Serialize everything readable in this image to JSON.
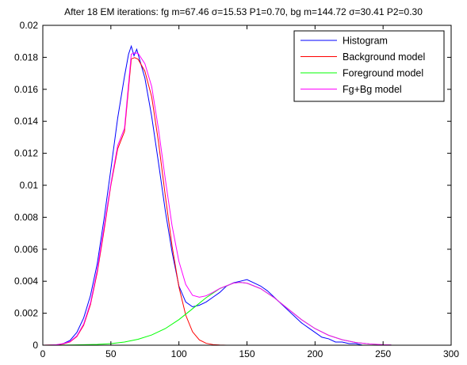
{
  "chart_data": {
    "type": "line",
    "title": "After 18 EM iterations: fg m=67.46 σ=15.53 P1=0.70, bg m=144.72 σ=30.41 P2=0.30",
    "xlabel": "",
    "ylabel": "",
    "xlim": [
      0,
      300
    ],
    "ylim": [
      0,
      0.02
    ],
    "xticks": [
      0,
      50,
      100,
      150,
      200,
      250,
      300
    ],
    "xtick_labels": [
      "0",
      "50",
      "100",
      "150",
      "200",
      "250",
      "300"
    ],
    "yticks": [
      0,
      0.002,
      0.004,
      0.006,
      0.008,
      0.01,
      0.012,
      0.014,
      0.016,
      0.018,
      0.02
    ],
    "ytick_labels": [
      "0",
      "0.002",
      "0.004",
      "0.006",
      "0.008",
      "0.01",
      "0.012",
      "0.014",
      "0.016",
      "0.018",
      "0.02"
    ],
    "grid": false,
    "legend_position": "top-right",
    "series": [
      {
        "name": "Histogram",
        "color": "#0000ff",
        "x": [
          0,
          5,
          10,
          15,
          20,
          25,
          30,
          35,
          40,
          45,
          50,
          55,
          60,
          63,
          65,
          67,
          69,
          72,
          75,
          80,
          85,
          90,
          95,
          100,
          105,
          110,
          115,
          120,
          125,
          130,
          135,
          140,
          145,
          150,
          155,
          160,
          165,
          170,
          175,
          180,
          185,
          190,
          195,
          200,
          205,
          210,
          215,
          220,
          225,
          230,
          235,
          240,
          245,
          250,
          255
        ],
        "y": [
          0,
          0,
          0,
          0.0001,
          0.0003,
          0.0008,
          0.0017,
          0.0031,
          0.0051,
          0.0079,
          0.011,
          0.0142,
          0.0168,
          0.0182,
          0.0187,
          0.0181,
          0.0185,
          0.0176,
          0.0167,
          0.0143,
          0.0114,
          0.0084,
          0.0058,
          0.0037,
          0.0027,
          0.0024,
          0.0025,
          0.0027,
          0.003,
          0.0033,
          0.0037,
          0.0039,
          0.004,
          0.0041,
          0.0039,
          0.0037,
          0.0034,
          0.003,
          0.0026,
          0.0022,
          0.0018,
          0.0014,
          0.0011,
          0.0008,
          0.0005,
          0.0004,
          0.0002,
          0.0002,
          0.0001,
          0.0001,
          0,
          0,
          0,
          0,
          0
        ]
      },
      {
        "name": "Background model",
        "color": "#ff0000",
        "x": [
          0,
          5,
          10,
          15,
          20,
          25,
          30,
          35,
          40,
          45,
          50,
          55,
          60,
          65,
          67.46,
          70,
          75,
          80,
          85,
          90,
          95,
          100,
          105,
          110,
          115,
          120,
          125,
          130,
          135,
          140,
          150,
          200,
          256
        ],
        "y": [
          0,
          1e-05,
          2e-05,
          8e-05,
          0.00021,
          0.00054,
          0.00125,
          0.00254,
          0.00455,
          0.00718,
          0.01,
          0.01228,
          0.01336,
          0.0179,
          0.01798,
          0.01788,
          0.01713,
          0.01553,
          0.0127,
          0.00934,
          0.00618,
          0.00364,
          0.00188,
          0.00084,
          0.00033,
          0.00012,
          4e-05,
          1e-05,
          0,
          0,
          0,
          0,
          0
        ]
      },
      {
        "name": "Foreground model",
        "color": "#00ff00",
        "x": [
          0,
          20,
          40,
          50,
          60,
          70,
          80,
          90,
          100,
          110,
          120,
          130,
          140,
          144.72,
          150,
          160,
          170,
          180,
          190,
          200,
          210,
          220,
          230,
          240,
          250,
          256
        ],
        "y": [
          0,
          1e-05,
          5e-05,
          0.0001,
          0.0002,
          0.00037,
          0.00064,
          0.00104,
          0.0016,
          0.00228,
          0.00297,
          0.00354,
          0.00388,
          0.00393,
          0.00388,
          0.00354,
          0.00297,
          0.00228,
          0.0016,
          0.00104,
          0.00062,
          0.00034,
          0.00017,
          8e-05,
          3e-05,
          2e-05
        ]
      },
      {
        "name": "Fg+Bg model",
        "color": "#ff00ff",
        "x": [
          0,
          5,
          10,
          15,
          20,
          25,
          30,
          35,
          40,
          45,
          50,
          55,
          60,
          65,
          67.46,
          70,
          75,
          80,
          85,
          90,
          95,
          100,
          105,
          110,
          115,
          120,
          125,
          130,
          140,
          144.72,
          150,
          160,
          170,
          180,
          190,
          200,
          210,
          220,
          230,
          240,
          250,
          256
        ],
        "y": [
          0,
          1e-05,
          3e-05,
          0.0001,
          0.00023,
          0.00058,
          0.00132,
          0.00264,
          0.0047,
          0.00738,
          0.0101,
          0.01248,
          0.01356,
          0.0182,
          0.01828,
          0.01825,
          0.0176,
          0.01617,
          0.0135,
          0.01038,
          0.00745,
          0.00524,
          0.0038,
          0.00312,
          0.003,
          0.00309,
          0.0033,
          0.00355,
          0.00388,
          0.00393,
          0.00388,
          0.00354,
          0.00297,
          0.00228,
          0.0016,
          0.00104,
          0.00062,
          0.00034,
          0.00017,
          8e-05,
          3e-05,
          2e-05
        ]
      }
    ]
  }
}
